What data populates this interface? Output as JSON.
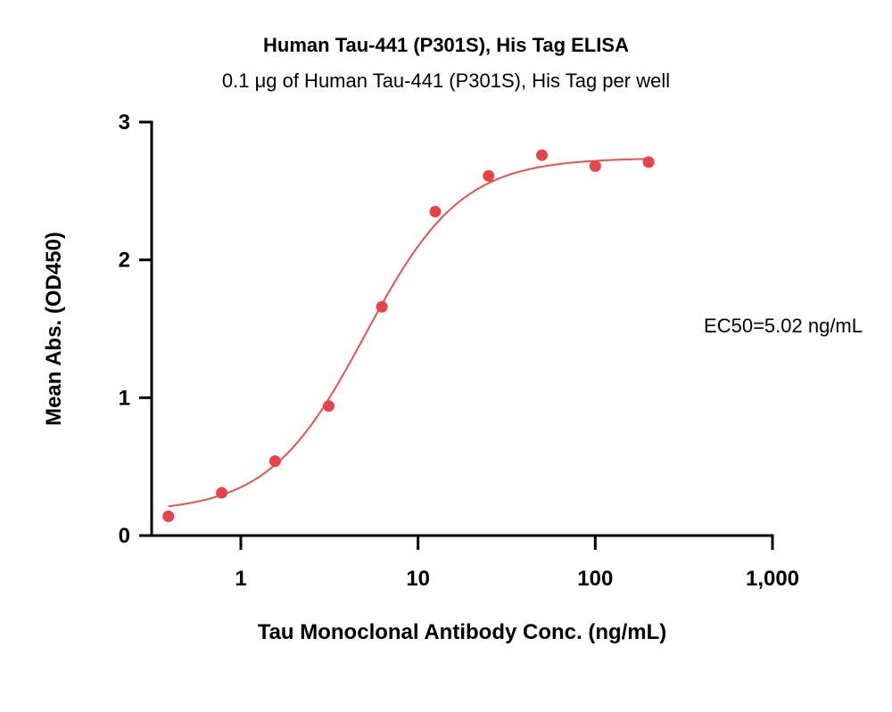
{
  "chart_data": {
    "type": "scatter",
    "title": "Human Tau-441 (P301S), His Tag ELISA",
    "subtitle": "0.1 μg of Human Tau-441 (P301S), His Tag per well",
    "xlabel": "Tau Monoclonal Antibody Conc. (ng/mL)",
    "ylabel": "Mean Abs. (OD450)",
    "xscale": "log",
    "xlim": [
      0.35,
      1000
    ],
    "ylim": [
      0,
      3
    ],
    "x_ticks": [
      1,
      10,
      100,
      1000
    ],
    "x_tick_labels": [
      "1",
      "10",
      "100",
      "1,000"
    ],
    "y_ticks": [
      0,
      1,
      2,
      3
    ],
    "y_tick_labels": [
      "0",
      "1",
      "2",
      "3"
    ],
    "annotation": "EC50=5.02 ng/mL",
    "grid": false,
    "colors": {
      "points": "#e8434a",
      "curve": "#e05550",
      "axis": "#000000"
    },
    "series": [
      {
        "x": [
          0.39,
          0.78,
          1.56,
          3.13,
          6.25,
          12.5,
          25,
          50,
          100,
          200
        ],
        "y": [
          0.14,
          0.31,
          0.54,
          0.94,
          1.66,
          2.35,
          2.61,
          2.76,
          2.68,
          2.71
        ],
        "fit": {
          "model": "4PL",
          "bottom": 0.17,
          "top": 2.74,
          "ec50": 5.02,
          "hill": 1.6,
          "x_range": [
            0.39,
            200
          ]
        }
      }
    ]
  }
}
